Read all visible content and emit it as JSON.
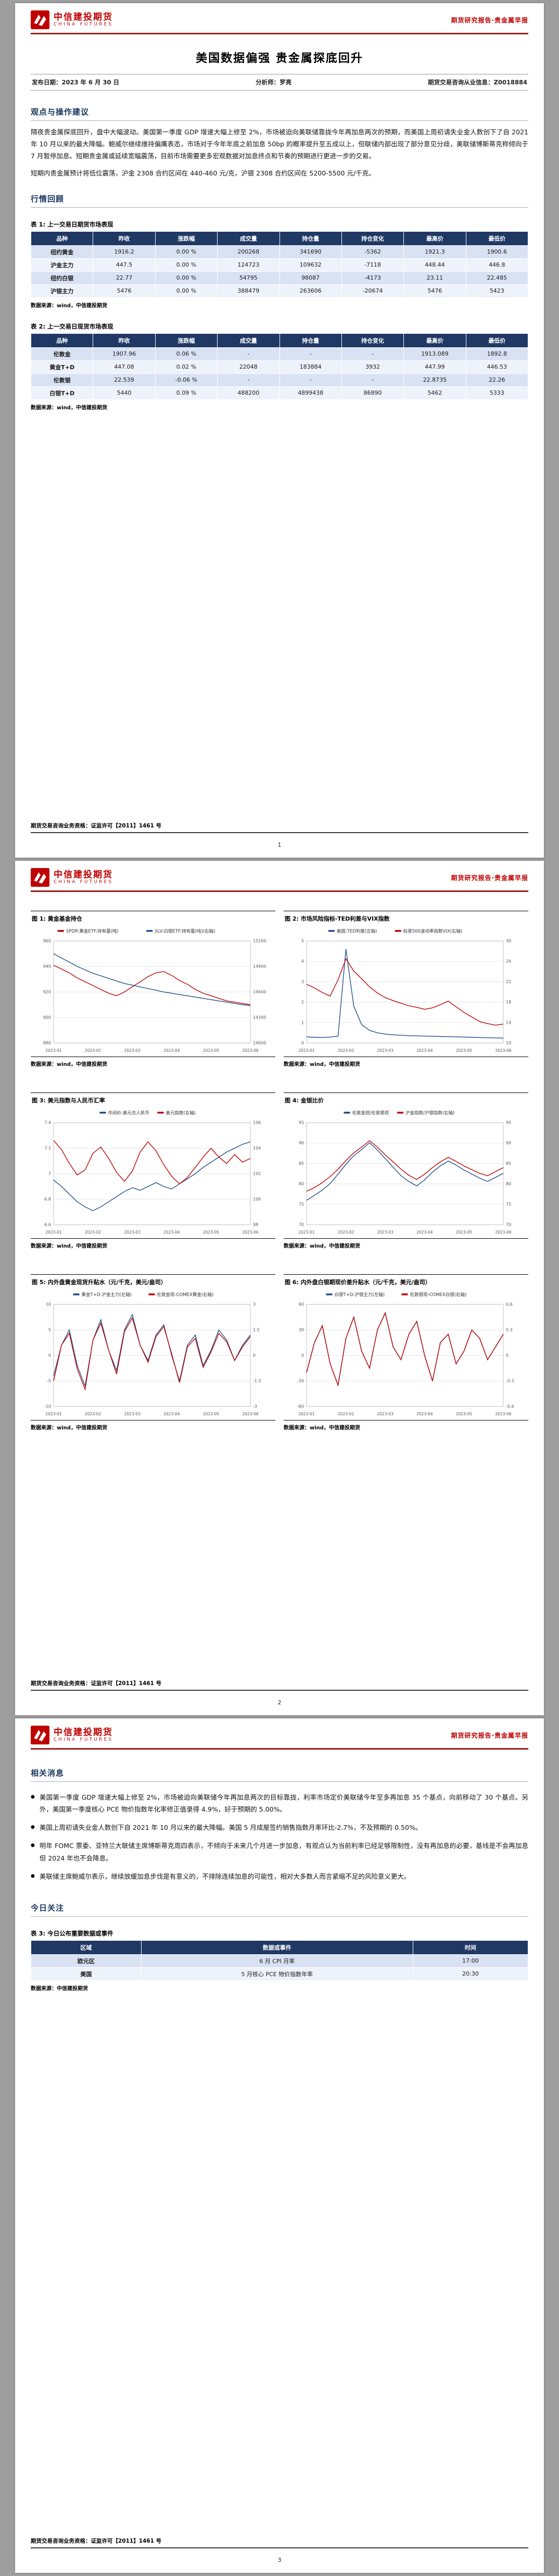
{
  "brand": {
    "company_cn": "中信建投期货",
    "company_en": "CHINA FUTURES",
    "header_right": "期货研究报告·贵金属早报",
    "footer": "期货交易咨询业务资格：证监许可【2011】1461 号",
    "accent_red": "#c00000",
    "rule_red": "#9e1c20",
    "table_header_blue": "#1f3864",
    "row_stripe_blue": "#d9e2f3"
  },
  "page1": {
    "title": "美国数据偏强 贵金属探底回升",
    "meta": {
      "publish": "发布日期：2023 年 6 月 30 日",
      "analyst": "分析师：罗亮",
      "qualification": "期货交易咨询从业信息：Z0018884"
    },
    "section_views": "观点与操作建议",
    "para1": "隔夜贵金属探底回升，盘中大幅波动。美国第一季度 GDP 增速大幅上修至 2%，市场被迫向美联储靠拢今年再加息两次的预期，而美国上周初请失业金人数创下了自 2021 年 10 月以来的最大降幅。鲍威尔继续维持偏鹰表态，市场对于今年年底之前加息 50bp 的概率提升至五成以上，但联储内部出现了部分意见分歧，美联储博斯蒂克称倾向于 7 月暂停加息。短期贵金属或延续宽幅震荡，目前市场需要更多宏观数据对加息终点和节奏的预期进行更进一步的交易。",
    "para2": "短期内贵金属预计将低位震荡，沪金 2308 合约区间在 440-460 元/克，沪银 2308 合约区间在 5200-5500 元/千克。",
    "section_review": "行情回顾",
    "table1": {
      "caption": "表 1: 上一交易日期货市场表现",
      "headers": [
        "品种",
        "昨收",
        "涨跌幅",
        "成交量",
        "持仓量",
        "持仓变化",
        "最高价",
        "最低价"
      ],
      "rows": [
        [
          "纽约黄金",
          "1916.2",
          "0.00 %",
          "200268",
          "341690",
          "-5362",
          "1921.3",
          "1900.6"
        ],
        [
          "沪金主力",
          "447.5",
          "0.00 %",
          "124723",
          "109632",
          "-7118",
          "448.44",
          "446.8"
        ],
        [
          "纽约白银",
          "22.77",
          "0.00 %",
          "54795",
          "98087",
          "-4173",
          "23.11",
          "22.485"
        ],
        [
          "沪银主力",
          "5476",
          "0.00 %",
          "388479",
          "263606",
          "-20674",
          "5476",
          "5423"
        ]
      ],
      "source": "数据来源：wind，中信建投期货"
    },
    "table2": {
      "caption": "表 2: 上一交易日现货市场表现",
      "headers": [
        "品种",
        "昨收",
        "涨跌幅",
        "成交量",
        "持仓量",
        "持仓变化",
        "最高价",
        "最低价"
      ],
      "rows": [
        [
          "伦敦金",
          "1907.96",
          "0.06 %",
          "-",
          "-",
          "-",
          "1913.089",
          "1892.8"
        ],
        [
          "黄金T+D",
          "447.08",
          "0.02 %",
          "22048",
          "183884",
          "3932",
          "447.99",
          "446.53"
        ],
        [
          "伦敦银",
          "22.539",
          "-0.06 %",
          "-",
          "-",
          "-",
          "22.8735",
          "22.26"
        ],
        [
          "白银T+D",
          "5440",
          "0.09 %",
          "488200",
          "4899438",
          "86890",
          "5462",
          "5333"
        ]
      ],
      "source": "数据来源：wind，中信建投期货"
    },
    "page_no": "1"
  },
  "page2": {
    "figure_source": "数据来源：wind，中信建投期货",
    "page_no": "2"
  },
  "page3": {
    "section_news": "相关消息",
    "bullets": [
      "美国第一季度 GDP 增速大幅上修至 2%，市场被迫向美联储今年再加息两次的目标靠拢，利率市场定价美联储今年至多再加息 35 个基点，向前移动了 30 个基点。另外，美国第一季度核心 PCE 物价指数年化率修正值录得 4.9%，好于预期的 5.00%。",
      "美国上周初请失业金人数创下自 2021 年 10 月以来的最大降幅。美国 5 月成屋签约销售指数月率环比-2.7%，不及预期的 0.50%。",
      "明年 FOMC 票委、亚特兰大联储主席博斯蒂克周四表示，不倾向于未来几个月进一步加息，有观点认为当前利率已经足够限制性，没有再加息的必要，基线是不会再加息但 2024 年也不会降息。",
      "美联储主席鲍威尔表示，继续放缓加息步伐是有意义的，不排除连续加息的可能性，相对大多数人而言紧缩不足的风险意义更大。"
    ],
    "section_today": "今日关注",
    "table3": {
      "caption": "表 3: 今日公布重要数据或事件",
      "headers": [
        "区域",
        "数据或事件",
        "时间"
      ],
      "rows": [
        [
          "欧元区",
          "6 月 CPI 月率",
          "17:00"
        ],
        [
          "美国",
          "5 月核心 PCE 物价指数年率",
          "20:30"
        ]
      ],
      "source": "数据来源：中信建投期货"
    },
    "page_no": "3"
  },
  "chart_data": [
    {
      "type": "line",
      "title": "图 1: 黄金基金持仓",
      "x_labels": [
        "2023-01",
        "2023-02",
        "2023-03",
        "2023-04",
        "2023-05",
        "2023-06"
      ],
      "left_ylim": [
        880,
        960
      ],
      "right_ylim": [
        14000,
        15200
      ],
      "left_ticks": [
        880,
        900,
        920,
        940,
        960
      ],
      "right_ticks": [
        14000,
        14300,
        14600,
        14900,
        15200
      ],
      "series": [
        {
          "name": "SPDR:黄金ETF:持有量(吨)",
          "axis": "left",
          "color": "#c00000",
          "values": [
            941,
            938,
            935,
            931,
            928,
            925,
            922,
            919,
            917,
            920,
            924,
            928,
            932,
            935,
            936,
            933,
            929,
            926,
            922,
            919,
            917,
            915,
            913,
            912,
            911,
            910
          ]
        },
        {
          "name": "SLV:白银ETF:持有量(吨)(右轴)",
          "axis": "right",
          "color": "#1f4e8c",
          "values": [
            15050,
            15000,
            14950,
            14900,
            14860,
            14820,
            14790,
            14760,
            14730,
            14700,
            14680,
            14660,
            14640,
            14620,
            14600,
            14585,
            14570,
            14555,
            14540,
            14525,
            14510,
            14495,
            14480,
            14465,
            14450,
            14440
          ]
        }
      ]
    },
    {
      "type": "line",
      "title": "图 2: 市场风险指标-TED利差与VIX指数",
      "x_labels": [
        "2023-01",
        "2023-02",
        "2023-03",
        "2023-04",
        "2023-05",
        "2023-06"
      ],
      "left_ylim": [
        0,
        5
      ],
      "right_ylim": [
        10,
        30
      ],
      "left_ticks": [
        0,
        1,
        2,
        3,
        4,
        5
      ],
      "right_ticks": [
        10,
        14,
        18,
        22,
        26,
        30
      ],
      "series": [
        {
          "name": "美国:TED利差(左轴)",
          "axis": "left",
          "color": "#1f4e8c",
          "values": [
            0.3,
            0.28,
            0.27,
            0.29,
            0.34,
            4.6,
            1.8,
            0.9,
            0.62,
            0.5,
            0.44,
            0.4,
            0.38,
            0.36,
            0.35,
            0.34,
            0.33,
            0.32,
            0.31,
            0.3,
            0.29,
            0.28,
            0.27,
            0.26,
            0.25,
            0.24
          ]
        },
        {
          "name": "标普500波动率指数VIX(右轴)",
          "axis": "right",
          "color": "#c00000",
          "values": [
            21.5,
            20.8,
            19.9,
            19.2,
            22.4,
            26.5,
            24.1,
            22.6,
            21.0,
            19.8,
            18.9,
            18.3,
            17.8,
            17.3,
            17.0,
            16.6,
            16.9,
            17.5,
            18.2,
            17.1,
            16.0,
            15.1,
            14.2,
            13.8,
            13.5,
            13.7
          ]
        }
      ]
    },
    {
      "type": "line",
      "title": "图 3: 美元指数与人民币汇率",
      "x_labels": [
        "2023-01",
        "2023-02",
        "2023-03",
        "2023-04",
        "2023-05",
        "2023-06"
      ],
      "left_ylim": [
        6.6,
        7.4
      ],
      "right_ylim": [
        98,
        106
      ],
      "left_ticks": [
        6.6,
        6.8,
        7.0,
        7.2,
        7.4
      ],
      "right_ticks": [
        98,
        100,
        102,
        104,
        106
      ],
      "series": [
        {
          "name": "中间价:美元兑人民币",
          "axis": "left",
          "color": "#1f4e8c",
          "values": [
            6.95,
            6.9,
            6.84,
            6.78,
            6.74,
            6.71,
            6.74,
            6.78,
            6.82,
            6.86,
            6.89,
            6.87,
            6.9,
            6.93,
            6.9,
            6.88,
            6.92,
            6.96,
            7.0,
            7.05,
            7.09,
            7.13,
            7.17,
            7.2,
            7.23,
            7.25
          ]
        },
        {
          "name": "美元指数(右轴)",
          "axis": "right",
          "color": "#c00000",
          "values": [
            104.6,
            103.9,
            102.8,
            101.9,
            102.3,
            103.6,
            104.1,
            103.2,
            102.1,
            101.4,
            102.2,
            103.7,
            104.5,
            103.8,
            102.7,
            101.8,
            101.2,
            101.7,
            102.5,
            103.3,
            104.0,
            103.3,
            102.8,
            103.5,
            102.9,
            103.2
          ]
        }
      ]
    },
    {
      "type": "line",
      "title": "图 4: 金银比价",
      "x_labels": [
        "2023-01",
        "2023-02",
        "2023-03",
        "2023-04",
        "2023-05",
        "2023-06"
      ],
      "left_ylim": [
        70,
        95
      ],
      "right_ylim": [
        70,
        95
      ],
      "left_ticks": [
        70,
        75,
        80,
        85,
        90,
        95
      ],
      "right_ticks": [
        70,
        75,
        80,
        85,
        90,
        95
      ],
      "series": [
        {
          "name": "伦敦金现/伦敦银现",
          "axis": "left",
          "color": "#1f4e8c",
          "values": [
            76.0,
            77.2,
            78.5,
            80.1,
            82.4,
            84.8,
            86.9,
            88.4,
            90.1,
            88.3,
            86.2,
            84.1,
            82.0,
            80.6,
            79.5,
            81.0,
            82.9,
            84.4,
            85.6,
            84.6,
            83.4,
            82.4,
            81.4,
            80.6,
            81.6,
            82.6
          ]
        },
        {
          "name": "沪金指数/沪银指数(右轴)",
          "axis": "right",
          "color": "#c00000",
          "values": [
            78.2,
            79.1,
            80.3,
            81.8,
            83.6,
            85.7,
            87.6,
            89.0,
            90.6,
            89.0,
            87.1,
            85.4,
            83.6,
            82.1,
            81.1,
            82.4,
            84.0,
            85.4,
            86.5,
            85.5,
            84.4,
            83.5,
            82.6,
            82.0,
            83.0,
            84.0
          ]
        }
      ]
    },
    {
      "type": "line",
      "title": "图 5: 内外盘黄金现货升贴水（元/千克，美元/盎司）",
      "x_labels": [
        "2023-01",
        "2023-02",
        "2023-03",
        "2023-04",
        "2023-05",
        "2023-06"
      ],
      "left_ylim": [
        -10,
        10
      ],
      "right_ylim": [
        -3,
        3
      ],
      "left_ticks": [
        -10,
        -5,
        0,
        5,
        10
      ],
      "right_ticks": [
        -3,
        -1.5,
        0,
        1.5,
        3
      ],
      "series": [
        {
          "name": "黄金T+D-沪金主力(左轴)",
          "axis": "left",
          "color": "#1f4e8c",
          "values": [
            -4,
            2,
            5,
            -2,
            -6,
            3,
            7,
            1,
            -3,
            5,
            8,
            2,
            -1,
            4,
            6,
            0,
            -5,
            2,
            4,
            -2,
            1,
            5,
            3,
            -1,
            2,
            4
          ]
        },
        {
          "name": "伦敦金现-COMEX黄金(右轴)",
          "axis": "right",
          "color": "#c00000",
          "values": [
            -1.5,
            0.6,
            1.3,
            -0.8,
            -2.0,
            0.9,
            1.9,
            0.3,
            -1.1,
            1.4,
            2.2,
            0.6,
            -0.4,
            1.1,
            1.7,
            0.1,
            -1.6,
            0.5,
            1.0,
            -0.7,
            0.2,
            1.3,
            0.8,
            -0.3,
            0.5,
            1.1
          ]
        }
      ]
    },
    {
      "type": "line",
      "title": "图 6: 内外盘白银期现价差升贴水（元/千克，美元/盎司）",
      "x_labels": [
        "2023-01",
        "2023-02",
        "2023-03",
        "2023-04",
        "2023-05",
        "2023-06"
      ],
      "left_ylim": [
        -60,
        60
      ],
      "right_ylim": [
        -0.6,
        0.6
      ],
      "left_ticks": [
        -60,
        -30,
        0,
        30,
        60
      ],
      "right_ticks": [
        -0.6,
        -0.3,
        0,
        0.3,
        0.6
      ],
      "series": [
        {
          "name": "白银T+D-沪银主力(左轴)",
          "axis": "left",
          "color": "#1f4e8c",
          "values": [
            -20,
            15,
            35,
            -10,
            -35,
            20,
            45,
            5,
            -15,
            30,
            50,
            10,
            -5,
            25,
            40,
            0,
            -30,
            15,
            25,
            -10,
            5,
            30,
            20,
            -5,
            10,
            25
          ]
        },
        {
          "name": "伦敦银现-COMEX白银(右轴)",
          "axis": "right",
          "color": "#c00000",
          "values": [
            -0.2,
            0.15,
            0.35,
            -0.1,
            -0.35,
            0.2,
            0.45,
            0.05,
            -0.15,
            0.3,
            0.5,
            0.1,
            -0.05,
            0.25,
            0.4,
            0,
            -0.3,
            0.15,
            0.25,
            -0.1,
            0.05,
            0.3,
            0.2,
            -0.05,
            0.1,
            0.25
          ]
        }
      ]
    }
  ]
}
